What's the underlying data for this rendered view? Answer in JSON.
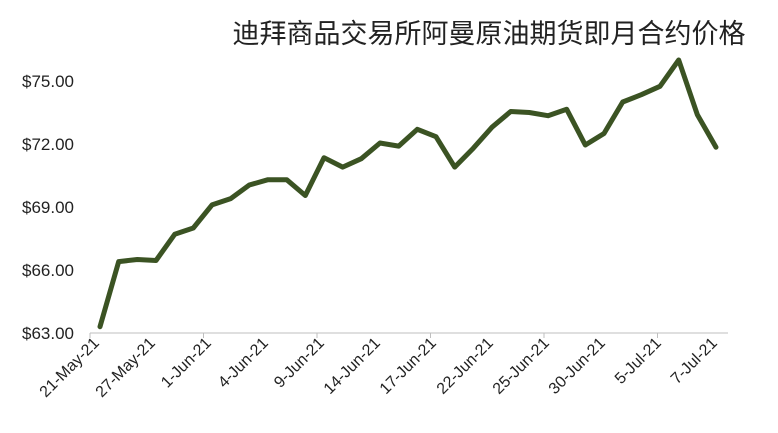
{
  "chart_data": {
    "type": "line",
    "title": "迪拜商品交易所阿曼原油期货即月合约价格",
    "xlabel": "",
    "ylabel": "",
    "ylim": [
      63.0,
      76.0
    ],
    "y_ticks": [
      "$63.00",
      "$66.00",
      "$69.00",
      "$72.00",
      "$75.00"
    ],
    "x_tick_labels": [
      "21-May-21",
      "27-May-21",
      "1-Jun-21",
      "4-Jun-21",
      "9-Jun-21",
      "14-Jun-21",
      "17-Jun-21",
      "22-Jun-21",
      "25-Jun-21",
      "30-Jun-21",
      "5-Jul-21",
      "7-Jul-21"
    ],
    "grid": false,
    "legend": "none",
    "line_color": "#3b5323",
    "series": [
      {
        "values": [
          63.3,
          66.4,
          66.5,
          66.45,
          67.7,
          68.0,
          69.1,
          69.4,
          70.05,
          70.3,
          70.3,
          69.55,
          71.35,
          70.9,
          71.3,
          72.05,
          71.9,
          72.7,
          72.35,
          70.9,
          71.8,
          72.8,
          73.55,
          73.5,
          73.35,
          73.65,
          71.95,
          72.5,
          74.0,
          74.35,
          74.75,
          76.0,
          73.4,
          71.85
        ]
      }
    ]
  }
}
